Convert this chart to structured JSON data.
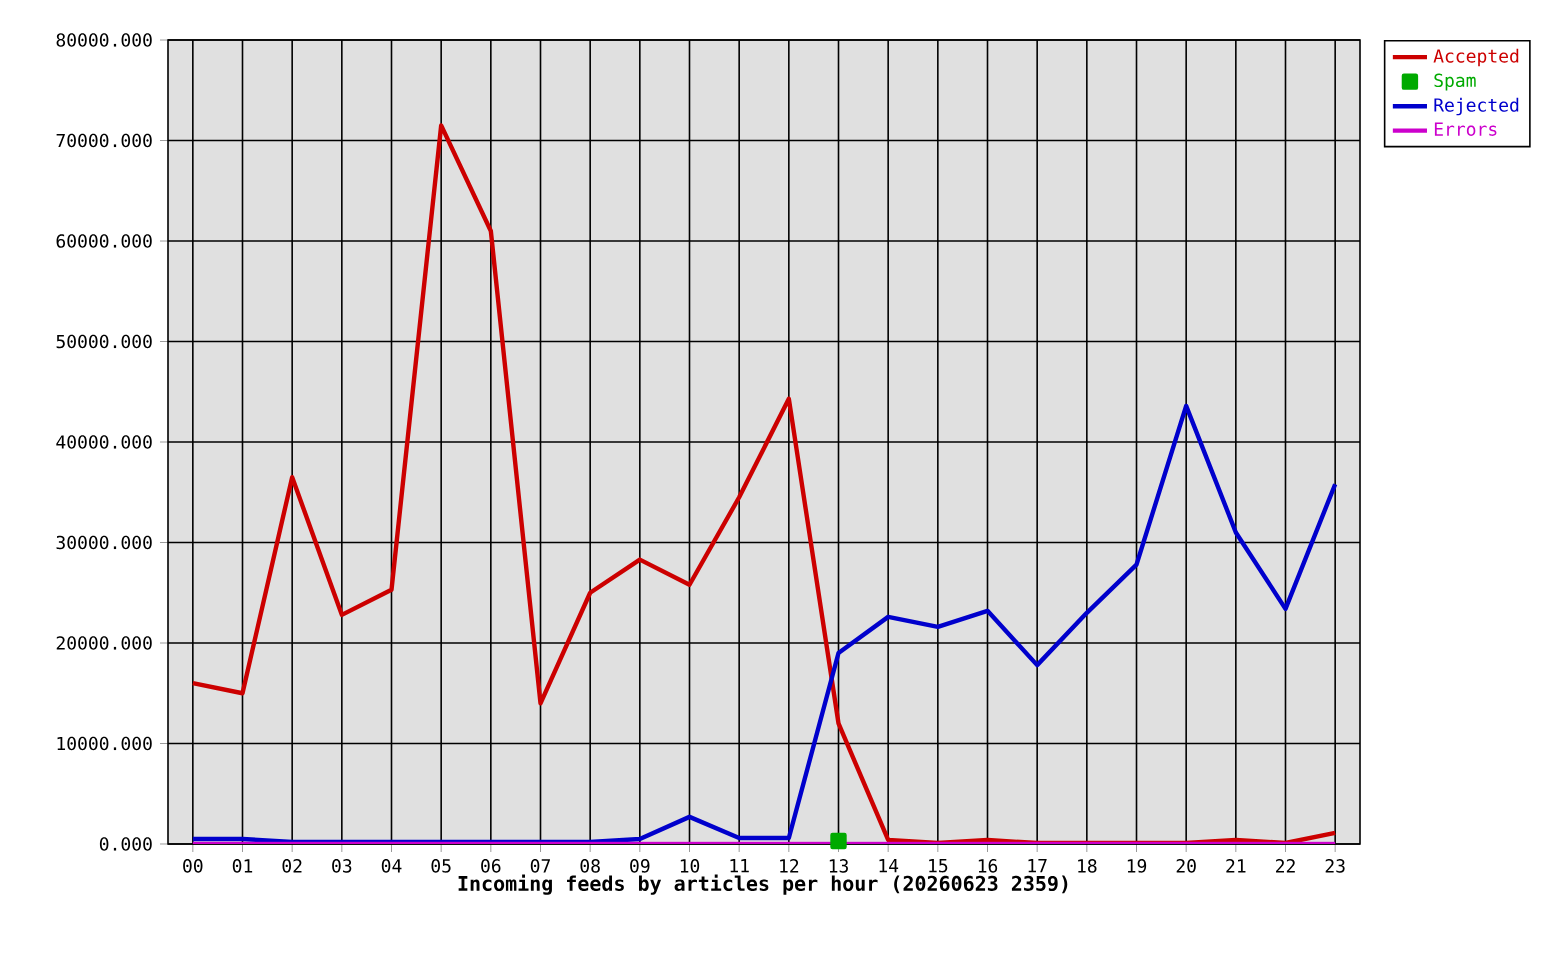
{
  "chart_data": {
    "type": "line",
    "xlabel": "Incoming feeds by articles per hour (20260623 2359)",
    "categories": [
      "00",
      "01",
      "02",
      "03",
      "04",
      "05",
      "06",
      "07",
      "08",
      "09",
      "10",
      "11",
      "12",
      "13",
      "14",
      "15",
      "16",
      "17",
      "18",
      "19",
      "20",
      "21",
      "22",
      "23"
    ],
    "series": [
      {
        "name": "Accepted",
        "color": "#cc0000",
        "values": [
          16000,
          15000,
          36500,
          22800,
          25300,
          71500,
          61000,
          14000,
          25000,
          28300,
          25800,
          34500,
          44300,
          12000,
          400,
          100,
          400,
          100,
          100,
          100,
          100,
          400,
          100,
          1100
        ]
      },
      {
        "name": "Spam",
        "color": "#00aa00",
        "type": "scatter",
        "values": [
          null,
          null,
          null,
          null,
          null,
          null,
          null,
          null,
          null,
          null,
          null,
          null,
          null,
          300,
          null,
          null,
          null,
          null,
          null,
          null,
          null,
          null,
          null,
          null
        ]
      },
      {
        "name": "Rejected",
        "color": "#0000cc",
        "values": [
          500,
          500,
          200,
          200,
          200,
          200,
          200,
          200,
          200,
          500,
          2700,
          600,
          600,
          19000,
          22600,
          21600,
          23200,
          17800,
          23000,
          27800,
          43600,
          31000,
          23400,
          35800
        ]
      },
      {
        "name": "Errors",
        "color": "#cc00cc",
        "values": [
          0,
          0,
          0,
          0,
          0,
          0,
          0,
          0,
          0,
          0,
          0,
          0,
          0,
          0,
          0,
          0,
          0,
          0,
          0,
          0,
          0,
          0,
          0,
          0
        ]
      }
    ],
    "ylim": [
      0,
      80000
    ],
    "yticks": [
      {
        "value": 0,
        "label": "0.000"
      },
      {
        "value": 10000,
        "label": "10000.000"
      },
      {
        "value": 20000,
        "label": "20000.000"
      },
      {
        "value": 30000,
        "label": "30000.000"
      },
      {
        "value": 40000,
        "label": "40000.000"
      },
      {
        "value": 50000,
        "label": "50000.000"
      },
      {
        "value": 60000,
        "label": "60000.000"
      },
      {
        "value": 70000,
        "label": "70000.000"
      },
      {
        "value": 80000,
        "label": "80000.000"
      }
    ],
    "grid": true,
    "legend": "top right",
    "line_style": "solid"
  }
}
